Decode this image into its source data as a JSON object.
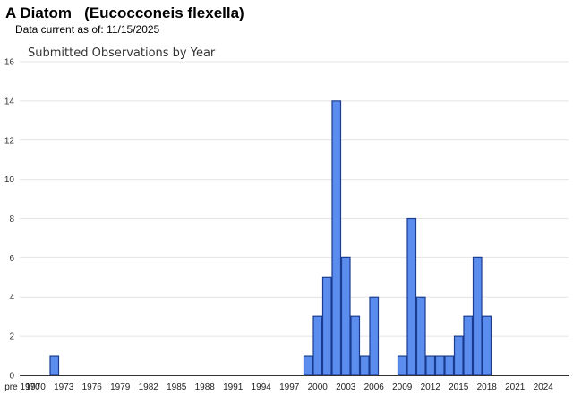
{
  "header": {
    "title": "A Diatom   (Eucocconeis flexella)",
    "date_label": "Data current as of:",
    "date_value": "11/15/2025"
  },
  "chart_data": {
    "type": "bar",
    "title": "Submitted Observations by Year",
    "xlabel": "",
    "ylabel": "",
    "ylim": [
      0,
      16
    ],
    "yticks": [
      0,
      2,
      4,
      6,
      8,
      10,
      12,
      14,
      16
    ],
    "grid": true,
    "bar_color": "#5b8def",
    "bar_edge_color": "#1a3d8f",
    "categories": [
      "pre 1970",
      "1970",
      "1971",
      "1972",
      "1973",
      "1974",
      "1975",
      "1976",
      "1977",
      "1978",
      "1979",
      "1980",
      "1981",
      "1982",
      "1983",
      "1984",
      "1985",
      "1986",
      "1987",
      "1988",
      "1989",
      "1990",
      "1991",
      "1992",
      "1993",
      "1994",
      "1995",
      "1996",
      "1997",
      "1998",
      "1999",
      "2000",
      "2001",
      "2002",
      "2003",
      "2004",
      "2005",
      "2006",
      "2007",
      "2008",
      "2009",
      "2010",
      "2011",
      "2012",
      "2013",
      "2014",
      "2015",
      "2016",
      "2017",
      "2018",
      "2019",
      "2020",
      "2021",
      "2022",
      "2023",
      "2024",
      "2025"
    ],
    "values": [
      0,
      0,
      0,
      1,
      0,
      0,
      0,
      0,
      0,
      0,
      0,
      0,
      0,
      0,
      0,
      0,
      0,
      0,
      0,
      0,
      0,
      0,
      0,
      0,
      0,
      0,
      0,
      0,
      0,
      0,
      1,
      3,
      5,
      14,
      6,
      3,
      1,
      4,
      0,
      0,
      1,
      8,
      4,
      1,
      1,
      1,
      2,
      3,
      6,
      3,
      0,
      0,
      0,
      0,
      0,
      0,
      0
    ],
    "x_tick_labels": [
      "pre 1970",
      "1970",
      "1973",
      "1976",
      "1979",
      "1982",
      "1985",
      "1988",
      "1991",
      "1994",
      "1997",
      "2000",
      "2003",
      "2006",
      "2009",
      "2012",
      "2015",
      "2018",
      "2021",
      "2024"
    ]
  }
}
